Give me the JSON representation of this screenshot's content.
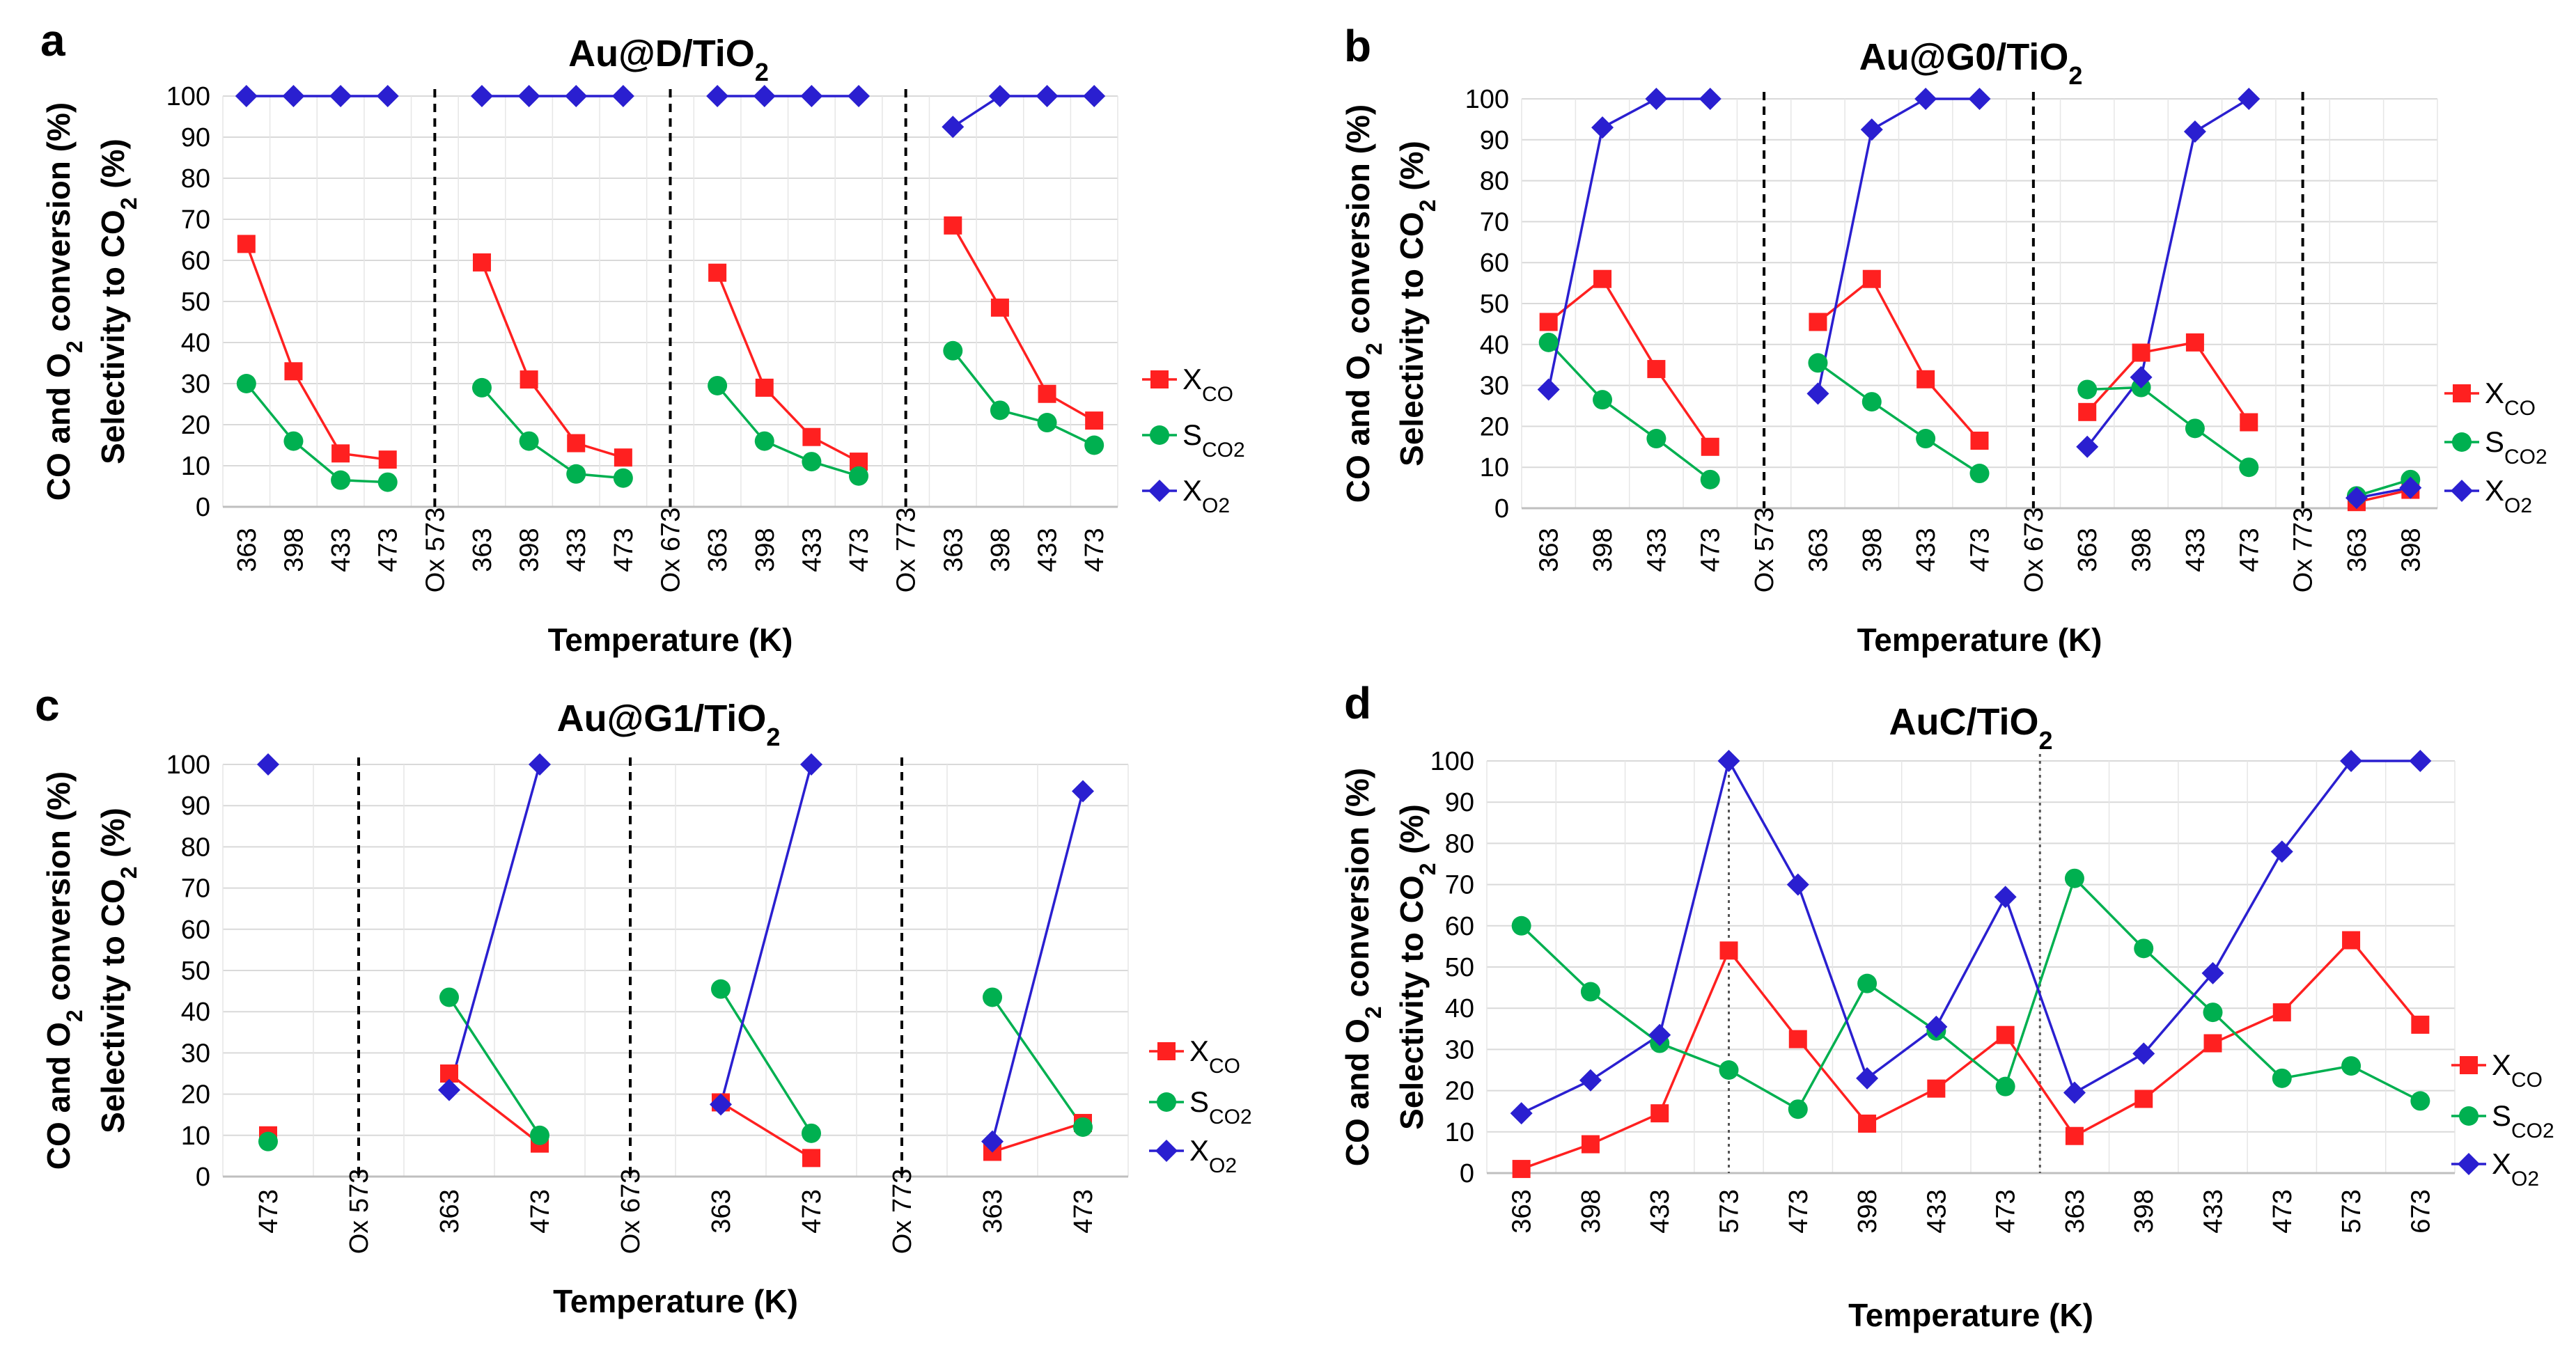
{
  "legend_labels": {
    "xco": "X",
    "xco_sub": "CO",
    "sco2": "S",
    "sco2_sub": "CO2",
    "xo2": "X",
    "xo2_sub": "O2"
  },
  "ylabel_line1": "CO and O2 conversion (%)",
  "ylabel_line2": "Selectivity to CO2 (%)",
  "colors": {
    "xco": "#ff2020",
    "sco2": "#00b050",
    "xo2": "#2a1fd0"
  },
  "chart_data": [
    {
      "letter": "a",
      "title": "Au@D/TiO",
      "title_sub": "2",
      "type": "line",
      "xlabel": "Temperature (K)",
      "ylim": [
        0,
        100
      ],
      "yticks": [
        0,
        10,
        20,
        30,
        40,
        50,
        60,
        70,
        80,
        90,
        100
      ],
      "categories": [
        "363",
        "398",
        "433",
        "473",
        "Ox 573",
        "363",
        "398",
        "433",
        "473",
        "Ox 673",
        "363",
        "398",
        "433",
        "473",
        "Ox 773",
        "363",
        "398",
        "433",
        "473"
      ],
      "dividers": [
        4,
        9,
        14
      ],
      "divider_style": "dashed",
      "series": [
        {
          "key": "xco",
          "name": "XCO",
          "segments": [
            [
              [
                0,
                64
              ],
              [
                1,
                33
              ],
              [
                2,
                13
              ],
              [
                3,
                11.5
              ]
            ],
            [
              [
                5,
                59.5
              ],
              [
                6,
                31
              ],
              [
                7,
                15.5
              ],
              [
                8,
                12
              ]
            ],
            [
              [
                10,
                57
              ],
              [
                11,
                29
              ],
              [
                12,
                17
              ],
              [
                13,
                11
              ]
            ],
            [
              [
                15,
                68.5
              ],
              [
                16,
                48.5
              ],
              [
                17,
                27.5
              ],
              [
                18,
                21
              ]
            ]
          ]
        },
        {
          "key": "sco2",
          "name": "SCO2",
          "segments": [
            [
              [
                0,
                30
              ],
              [
                1,
                16
              ],
              [
                2,
                6.5
              ],
              [
                3,
                6
              ]
            ],
            [
              [
                5,
                29
              ],
              [
                6,
                16
              ],
              [
                7,
                8
              ],
              [
                8,
                7
              ]
            ],
            [
              [
                10,
                29.5
              ],
              [
                11,
                16
              ],
              [
                12,
                11
              ],
              [
                13,
                7.5
              ]
            ],
            [
              [
                15,
                38
              ],
              [
                16,
                23.5
              ],
              [
                17,
                20.5
              ],
              [
                18,
                15
              ]
            ]
          ]
        },
        {
          "key": "xo2",
          "name": "XO2",
          "segments": [
            [
              [
                0,
                100
              ],
              [
                1,
                100
              ],
              [
                2,
                100
              ],
              [
                3,
                100
              ]
            ],
            [
              [
                5,
                100
              ],
              [
                6,
                100
              ],
              [
                7,
                100
              ],
              [
                8,
                100
              ]
            ],
            [
              [
                10,
                100
              ],
              [
                11,
                100
              ],
              [
                12,
                100
              ],
              [
                13,
                100
              ]
            ],
            [
              [
                15,
                92.5
              ],
              [
                16,
                100
              ],
              [
                17,
                100
              ],
              [
                18,
                100
              ]
            ]
          ]
        }
      ]
    },
    {
      "letter": "b",
      "title": "Au@G0/TiO",
      "title_sub": "2",
      "type": "line",
      "xlabel": "Temperature (K)",
      "ylim": [
        0,
        100
      ],
      "yticks": [
        0,
        10,
        20,
        30,
        40,
        50,
        60,
        70,
        80,
        90,
        100
      ],
      "categories": [
        "363",
        "398",
        "433",
        "473",
        "Ox 573",
        "363",
        "398",
        "433",
        "473",
        "Ox 673",
        "363",
        "398",
        "433",
        "473",
        "Ox 773",
        "363",
        "398"
      ],
      "dividers": [
        4,
        9,
        14
      ],
      "divider_style": "dashed",
      "series": [
        {
          "key": "xco",
          "name": "XCO",
          "segments": [
            [
              [
                0,
                45.5
              ],
              [
                1,
                56
              ],
              [
                2,
                34
              ],
              [
                3,
                15
              ]
            ],
            [
              [
                5,
                45.5
              ],
              [
                6,
                56
              ],
              [
                7,
                31.5
              ],
              [
                8,
                16.5
              ]
            ],
            [
              [
                10,
                23.5
              ],
              [
                11,
                38
              ],
              [
                12,
                40.5
              ],
              [
                13,
                21
              ]
            ],
            [
              [
                15,
                1.5
              ],
              [
                16,
                4.5
              ]
            ]
          ]
        },
        {
          "key": "sco2",
          "name": "SCO2",
          "segments": [
            [
              [
                0,
                40.5
              ],
              [
                1,
                26.5
              ],
              [
                2,
                17
              ],
              [
                3,
                7
              ]
            ],
            [
              [
                5,
                35.5
              ],
              [
                6,
                26
              ],
              [
                7,
                17
              ],
              [
                8,
                8.5
              ]
            ],
            [
              [
                10,
                29
              ],
              [
                11,
                29.5
              ],
              [
                12,
                19.5
              ],
              [
                13,
                10
              ]
            ],
            [
              [
                15,
                3
              ],
              [
                16,
                7
              ]
            ]
          ]
        },
        {
          "key": "xo2",
          "name": "XO2",
          "segments": [
            [
              [
                0,
                29
              ],
              [
                1,
                93
              ],
              [
                2,
                100
              ],
              [
                3,
                100
              ]
            ],
            [
              [
                5,
                28
              ],
              [
                6,
                92.5
              ],
              [
                7,
                100
              ],
              [
                8,
                100
              ]
            ],
            [
              [
                10,
                15
              ],
              [
                11,
                32
              ],
              [
                12,
                92
              ],
              [
                13,
                100
              ]
            ],
            [
              [
                15,
                2.5
              ],
              [
                16,
                5
              ]
            ]
          ]
        }
      ]
    },
    {
      "letter": "c",
      "title": "Au@G1/TiO",
      "title_sub": "2",
      "type": "line",
      "xlabel": "Temperature (K)",
      "ylim": [
        0,
        100
      ],
      "yticks": [
        0,
        10,
        20,
        30,
        40,
        50,
        60,
        70,
        80,
        90,
        100
      ],
      "categories": [
        "473",
        "Ox 573",
        "363",
        "473",
        "Ox 673",
        "363",
        "473",
        "Ox 773",
        "363",
        "473"
      ],
      "dividers": [
        1,
        4,
        7
      ],
      "divider_style": "dashed",
      "series": [
        {
          "key": "xco",
          "name": "XCO",
          "segments": [
            [
              [
                0,
                10
              ]
            ],
            [
              [
                2,
                25
              ],
              [
                3,
                8
              ]
            ],
            [
              [
                5,
                18
              ],
              [
                6,
                4.5
              ]
            ],
            [
              [
                8,
                6
              ],
              [
                9,
                13
              ]
            ]
          ]
        },
        {
          "key": "sco2",
          "name": "SCO2",
          "segments": [
            [
              [
                0,
                8.5
              ]
            ],
            [
              [
                2,
                43.5
              ],
              [
                3,
                10
              ]
            ],
            [
              [
                5,
                45.5
              ],
              [
                6,
                10.5
              ]
            ],
            [
              [
                8,
                43.5
              ],
              [
                9,
                12
              ]
            ]
          ]
        },
        {
          "key": "xo2",
          "name": "XO2",
          "segments": [
            [
              [
                0,
                100
              ]
            ],
            [
              [
                2,
                21
              ],
              [
                3,
                100
              ]
            ],
            [
              [
                5,
                17.5
              ],
              [
                6,
                100
              ]
            ],
            [
              [
                8,
                8.5
              ],
              [
                9,
                93.5
              ]
            ]
          ]
        }
      ]
    },
    {
      "letter": "d",
      "title": "AuC/TiO",
      "title_sub": "2",
      "type": "line",
      "xlabel": "Temperature (K)",
      "ylim": [
        0,
        100
      ],
      "yticks": [
        0,
        10,
        20,
        30,
        40,
        50,
        60,
        70,
        80,
        90,
        100
      ],
      "categories": [
        "363",
        "398",
        "433",
        "573",
        "473",
        "398",
        "433",
        "473",
        "363",
        "398",
        "433",
        "473",
        "573",
        "673"
      ],
      "dividers": [
        3,
        7.5
      ],
      "divider_style": "dotted",
      "series": [
        {
          "key": "xco",
          "name": "XCO",
          "segments": [
            [
              [
                0,
                1
              ],
              [
                1,
                7
              ],
              [
                2,
                14.5
              ],
              [
                3,
                54
              ],
              [
                4,
                32.5
              ],
              [
                5,
                12
              ],
              [
                6,
                20.5
              ],
              [
                7,
                33.5
              ],
              [
                8,
                9
              ],
              [
                9,
                18
              ],
              [
                10,
                31.5
              ],
              [
                11,
                39
              ],
              [
                12,
                56.5
              ],
              [
                13,
                36
              ]
            ]
          ]
        },
        {
          "key": "sco2",
          "name": "SCO2",
          "segments": [
            [
              [
                0,
                60
              ],
              [
                1,
                44
              ],
              [
                2,
                31.5
              ],
              [
                3,
                25
              ],
              [
                4,
                15.5
              ],
              [
                5,
                46
              ],
              [
                6,
                34.5
              ],
              [
                7,
                21
              ],
              [
                8,
                71.5
              ],
              [
                9,
                54.5
              ],
              [
                10,
                39
              ],
              [
                11,
                23
              ],
              [
                12,
                26
              ],
              [
                13,
                17.5
              ]
            ]
          ]
        },
        {
          "key": "xo2",
          "name": "XO2",
          "segments": [
            [
              [
                0,
                14.5
              ],
              [
                1,
                22.5
              ],
              [
                2,
                33.5
              ],
              [
                3,
                100
              ],
              [
                4,
                70
              ],
              [
                5,
                23
              ],
              [
                6,
                35.5
              ],
              [
                7,
                67
              ],
              [
                8,
                19.5
              ],
              [
                9,
                29
              ],
              [
                10,
                48.5
              ],
              [
                11,
                78
              ],
              [
                12,
                100
              ],
              [
                13,
                100
              ]
            ]
          ]
        }
      ]
    }
  ]
}
